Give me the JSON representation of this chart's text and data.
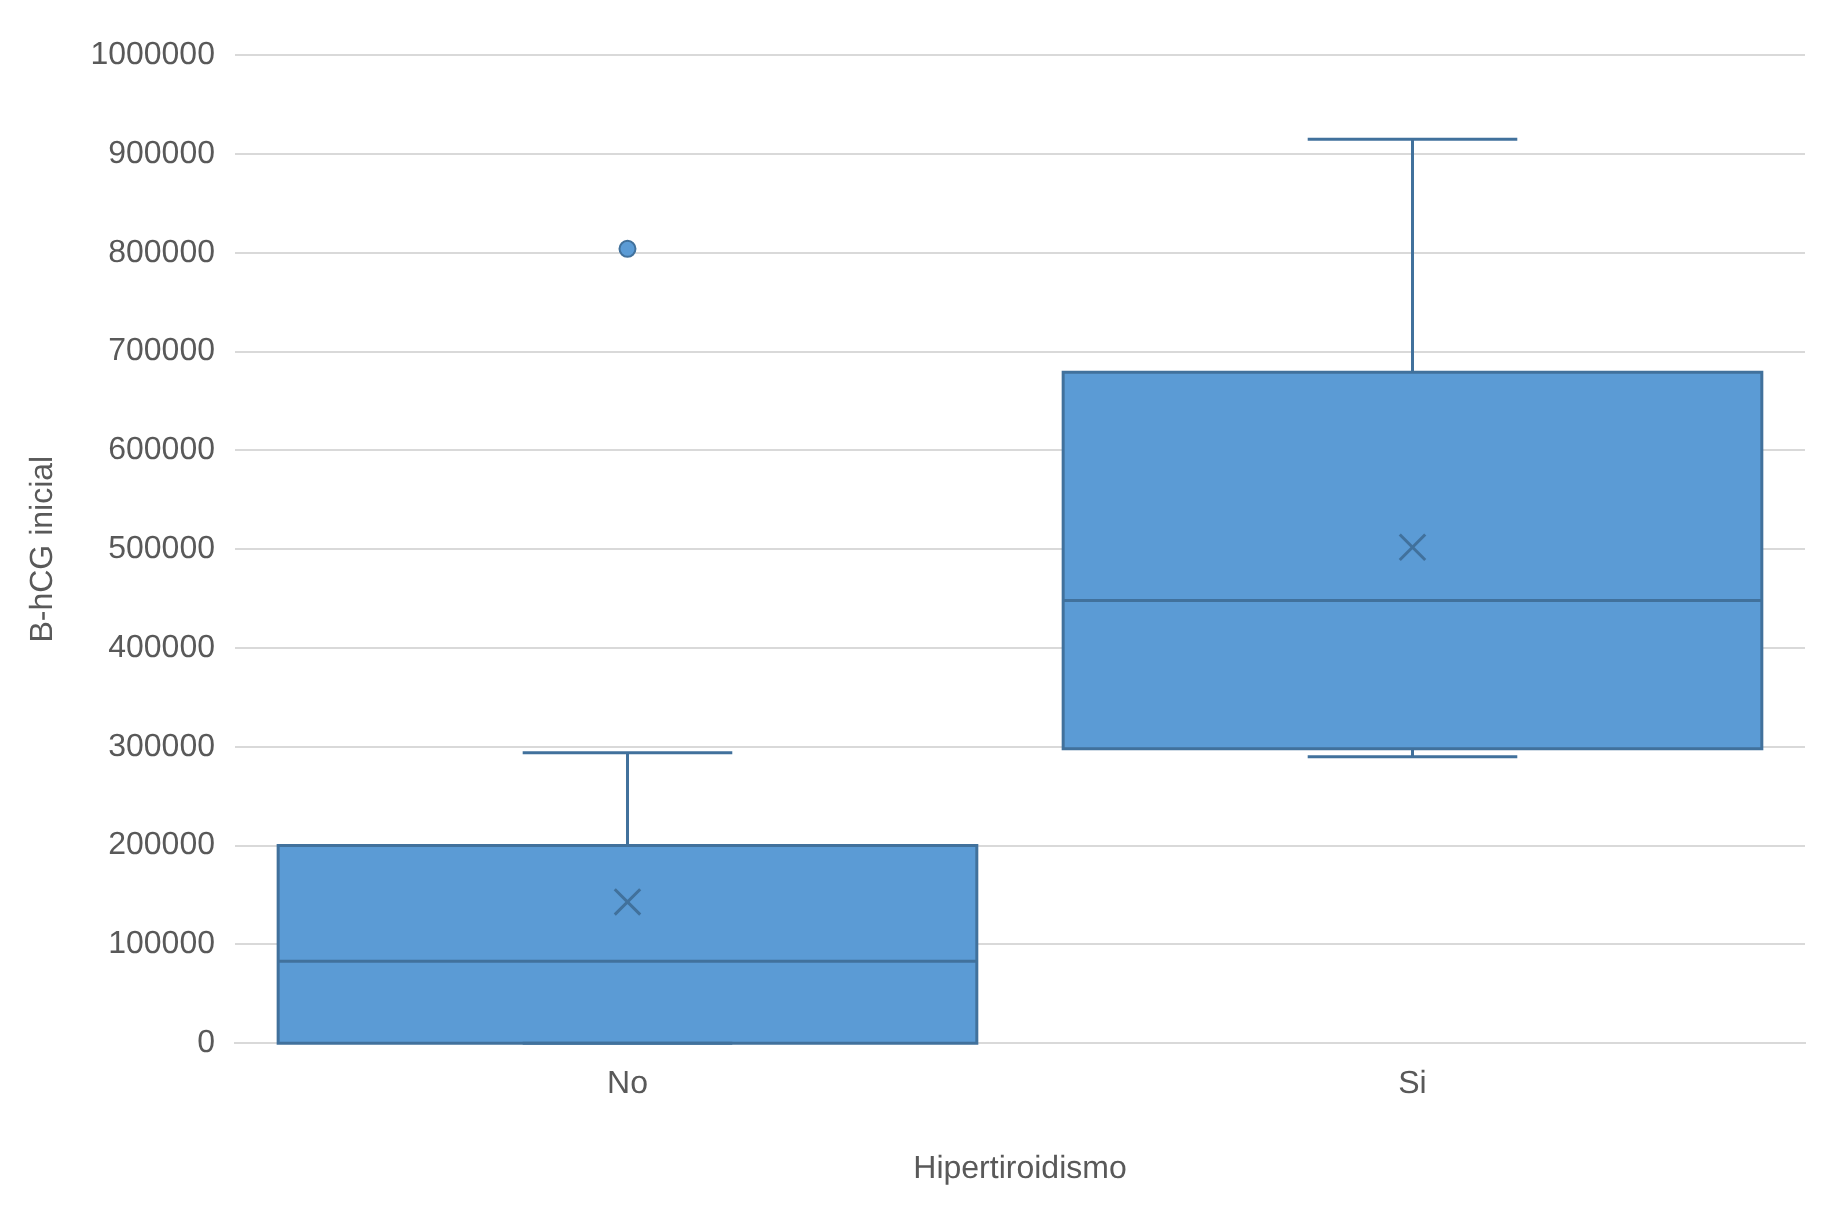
{
  "chart_data": {
    "type": "box",
    "categories": [
      "No",
      "Si"
    ],
    "xlabel": "Hipertiroidismo",
    "ylabel": "B-hCG inicial",
    "color": "#5b9bd5",
    "boxes": [
      {
        "low": 0,
        "q1": 0,
        "median": 83000,
        "q3": 200000,
        "high": 294000,
        "mean": 143000,
        "outliers": [
          804000
        ]
      },
      {
        "low": 290000,
        "q1": 298000,
        "median": 448000,
        "q3": 679000,
        "high": 915000,
        "mean": 502000
      }
    ],
    "ylim": [
      0,
      1000000
    ],
    "yticks": [
      0,
      100000,
      200000,
      300000,
      400000,
      500000,
      600000,
      700000,
      800000,
      900000,
      1000000
    ],
    "grid": "y",
    "legend": false
  }
}
